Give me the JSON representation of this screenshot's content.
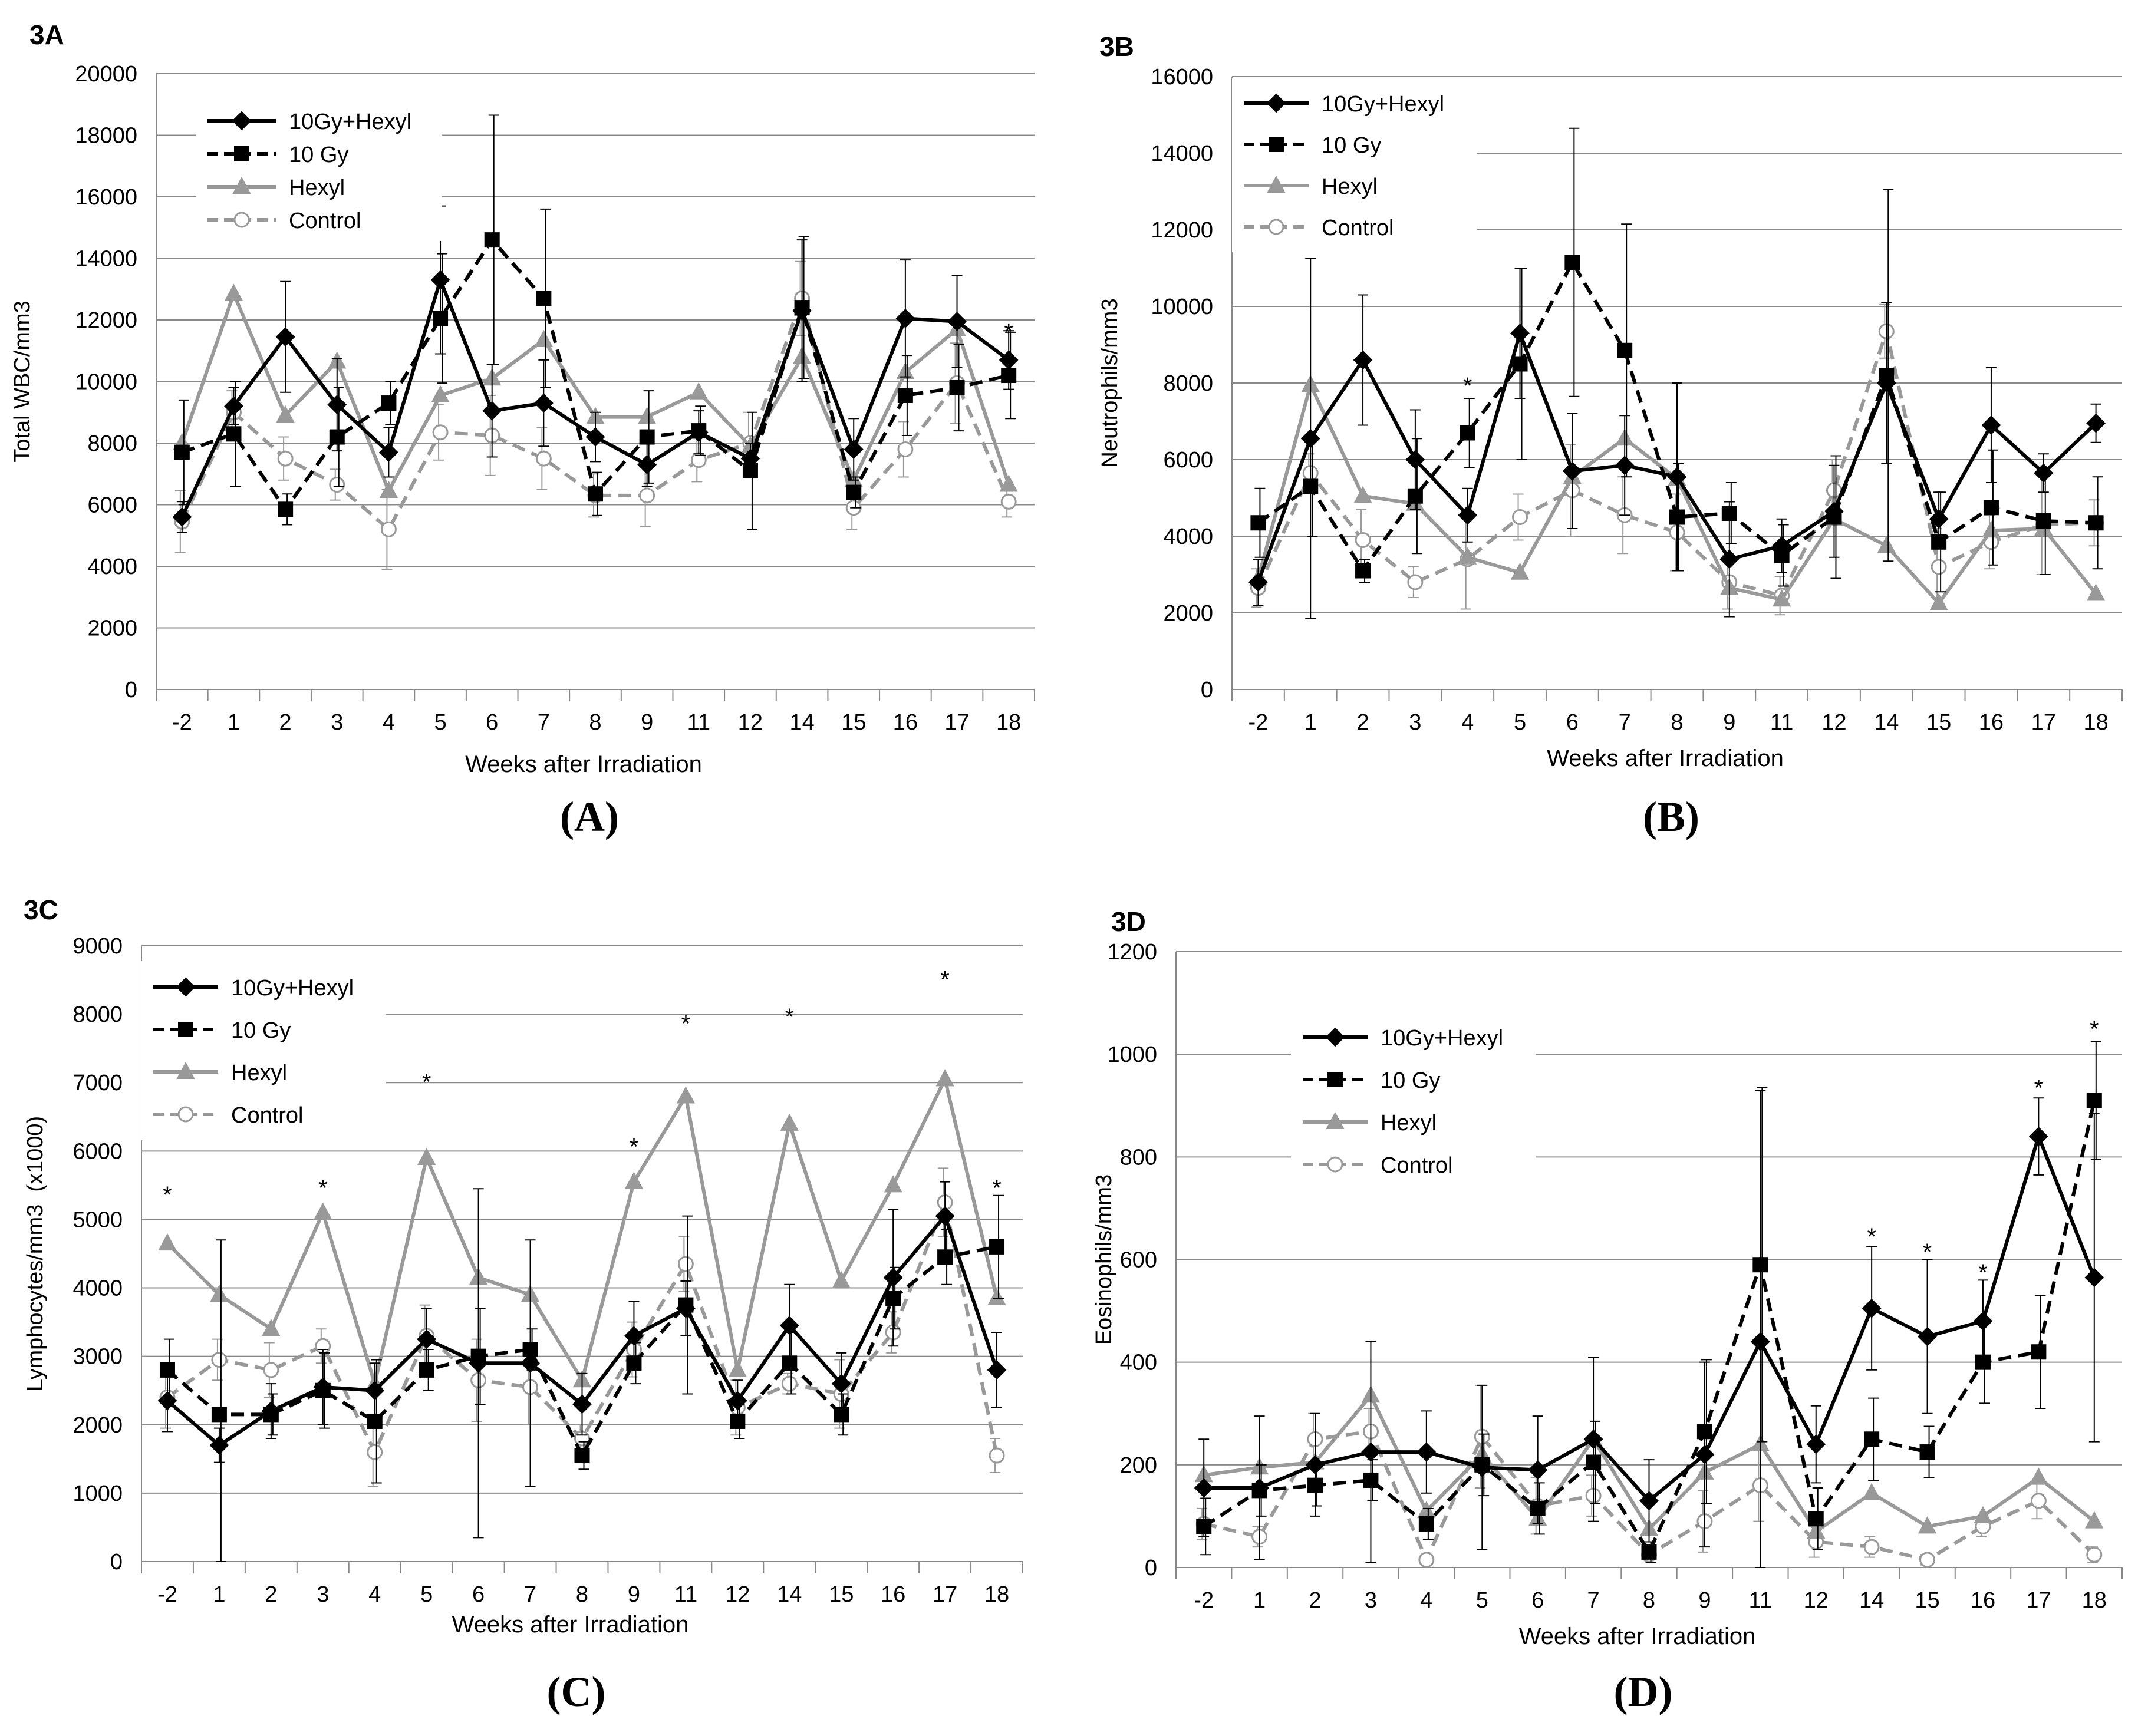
{
  "figure": {
    "captions": [
      "(A)",
      "(B)",
      "(C)",
      "(D)"
    ]
  },
  "series_styles": [
    {
      "key": "10Gy+Hexyl",
      "color": "#000000",
      "dash": "solid",
      "marker": "diamond",
      "marker_fill": "#000000"
    },
    {
      "key": "10 Gy",
      "color": "#000000",
      "dash": "dashed",
      "marker": "square",
      "marker_fill": "#000000"
    },
    {
      "key": "Hexyl",
      "color": "#999999",
      "dash": "solid",
      "marker": "triangle",
      "marker_fill": "#999999"
    },
    {
      "key": "Control",
      "color": "#999999",
      "dash": "dashed",
      "marker": "circle",
      "marker_fill": "#ffffff"
    }
  ],
  "chart_data": [
    {
      "panel_label": "3A",
      "caption": "(A)",
      "type": "line",
      "xlabel": "Weeks after Irradiation",
      "ylabel": "Total WBC/mm3",
      "ylim": [
        0,
        20000
      ],
      "yticks": [
        0,
        2000,
        4000,
        6000,
        8000,
        10000,
        12000,
        14000,
        16000,
        18000,
        20000
      ],
      "grid": true,
      "legend_position": "top-left",
      "categories": [
        "-2",
        "1",
        "2",
        "3",
        "4",
        "5",
        "6",
        "7",
        "8",
        "9",
        "11",
        "12",
        "14",
        "15",
        "16",
        "17",
        "18"
      ],
      "series": [
        {
          "name": "10Gy+Hexyl",
          "values": [
            5600,
            9200,
            11450,
            9250,
            7700,
            13300,
            9050,
            9300,
            8200,
            7300,
            8350,
            7500,
            12300,
            7800,
            12050,
            11950,
            10700
          ],
          "error": [
            500,
            600,
            1800,
            1500,
            800,
            2400,
            1500,
            1400,
            800,
            700,
            700,
            500,
            2300,
            1000,
            1900,
            1500,
            950
          ]
        },
        {
          "name": "10 Gy",
          "values": [
            7700,
            8300,
            5850,
            8200,
            9300,
            12050,
            14600,
            12700,
            6350,
            8200,
            8400,
            7100,
            12400,
            6400,
            9550,
            9800,
            10200
          ],
          "error": [
            1700,
            1700,
            500,
            1600,
            700,
            2100,
            4050,
            2900,
            700,
            1500,
            800,
            1900,
            2300,
            500,
            1300,
            1400,
            1400
          ]
        },
        {
          "name": "Hexyl",
          "values": [
            8000,
            12850,
            8900,
            10650,
            6450,
            9550,
            10100,
            11350,
            8850,
            8850,
            9650,
            7900,
            10800,
            6800,
            10300,
            11700,
            6650
          ]
        },
        {
          "name": "Control",
          "values": [
            5450,
            9000,
            7500,
            6650,
            5200,
            8350,
            8250,
            7500,
            6300,
            6300,
            7450,
            8000,
            12700,
            5900,
            7800,
            9950,
            6100
          ],
          "error": [
            1000,
            700,
            700,
            500,
            1300,
            900,
            1300,
            1000,
            700,
            1000,
            700,
            1000,
            1200,
            700,
            900,
            1300,
            500
          ]
        }
      ],
      "annotations": [
        {
          "text": "*",
          "category": "18",
          "y": 11700
        }
      ]
    },
    {
      "panel_label": "3B",
      "caption": "(B)",
      "type": "line",
      "xlabel": "Weeks after Irradiation",
      "ylabel": "Neutrophils/mm3",
      "ylim": [
        0,
        16000
      ],
      "yticks": [
        0,
        2000,
        4000,
        6000,
        8000,
        10000,
        12000,
        14000,
        16000
      ],
      "grid": true,
      "legend_position": "top-left",
      "categories": [
        "-2",
        "1",
        "2",
        "3",
        "4",
        "5",
        "6",
        "7",
        "8",
        "9",
        "11",
        "12",
        "14",
        "15",
        "16",
        "17",
        "18"
      ],
      "series": [
        {
          "name": "10Gy+Hexyl",
          "values": [
            2800,
            6550,
            8600,
            6000,
            4550,
            9300,
            5700,
            5850,
            5550,
            3400,
            3750,
            4650,
            8000,
            4450,
            6900,
            5650,
            6950
          ],
          "error": [
            600,
            4700,
            1700,
            1300,
            700,
            1700,
            1500,
            1300,
            2450,
            1500,
            700,
            1200,
            2100,
            700,
            1500,
            500,
            500
          ]
        },
        {
          "name": "10 Gy",
          "values": [
            4350,
            5300,
            3100,
            5050,
            6700,
            8500,
            11150,
            8850,
            4500,
            4600,
            3500,
            4500,
            8200,
            3850,
            4750,
            4400,
            4350
          ],
          "error": [
            900,
            1300,
            300,
            1500,
            900,
            2500,
            3500,
            3300,
            1400,
            800,
            800,
            1600,
            4850,
            1300,
            1500,
            1400,
            1200
          ]
        },
        {
          "name": "Hexyl",
          "values": [
            2900,
            7950,
            5050,
            4850,
            3450,
            3050,
            5550,
            6550,
            5500,
            2650,
            2350,
            4450,
            3750,
            2250,
            4150,
            4200,
            2500
          ]
        },
        {
          "name": "Control",
          "values": [
            2650,
            5650,
            3900,
            2800,
            3400,
            4500,
            5200,
            4550,
            4100,
            2800,
            2450,
            5200,
            9350,
            3200,
            3850,
            4300,
            4350
          ],
          "error": [
            500,
            500,
            800,
            400,
            1300,
            600,
            1200,
            1000,
            1000,
            700,
            500,
            800,
            700,
            1000,
            700,
            1300,
            600
          ]
        }
      ],
      "annotations": [
        {
          "text": "*",
          "category": "1",
          "y": 11700
        },
        {
          "text": "*",
          "category": "4",
          "y": 8000
        }
      ]
    },
    {
      "panel_label": "3C",
      "caption": "(C)",
      "type": "line",
      "xlabel": "Weeks after Irradiation",
      "ylabel": "Lymphocytes/mm3  (x1000)",
      "ylim": [
        0,
        9000
      ],
      "yticks": [
        0,
        1000,
        2000,
        3000,
        4000,
        5000,
        6000,
        7000,
        8000,
        9000
      ],
      "grid": true,
      "legend_position": "top-left",
      "categories": [
        "-2",
        "1",
        "2",
        "3",
        "4",
        "5",
        "6",
        "7",
        "8",
        "9",
        "11",
        "12",
        "14",
        "15",
        "16",
        "17",
        "18"
      ],
      "series": [
        {
          "name": "10Gy+Hexyl",
          "values": [
            2350,
            1700,
            2200,
            2550,
            2500,
            3250,
            2900,
            2900,
            2300,
            3300,
            3700,
            2350,
            3450,
            2600,
            4150,
            5050,
            2800
          ],
          "error": [
            450,
            250,
            400,
            550,
            400,
            450,
            2550,
            1800,
            450,
            500,
            400,
            300,
            600,
            450,
            1000,
            500,
            550
          ]
        },
        {
          "name": "10 Gy",
          "values": [
            2800,
            2150,
            2150,
            2500,
            2050,
            2800,
            3000,
            3100,
            1550,
            2900,
            3750,
            2050,
            2900,
            2150,
            3850,
            4450,
            4600
          ],
          "error": [
            450,
            2550,
            300,
            550,
            900,
            300,
            700,
            300,
            200,
            300,
            1300,
            250,
            450,
            300,
            450,
            400,
            750
          ]
        },
        {
          "name": "Hexyl",
          "values": [
            4650,
            3900,
            3400,
            5100,
            2600,
            5900,
            4150,
            3900,
            2650,
            5550,
            6800,
            2800,
            6400,
            4100,
            5500,
            7050,
            3850
          ]
        },
        {
          "name": "Control",
          "values": [
            2400,
            2950,
            2800,
            3150,
            1600,
            3300,
            2650,
            2550,
            1800,
            3100,
            4350,
            2250,
            2600,
            2450,
            3350,
            5250,
            1550
          ],
          "error": [
            450,
            300,
            400,
            250,
            500,
            450,
            600,
            550,
            200,
            400,
            400,
            400,
            150,
            500,
            300,
            500,
            250
          ]
        }
      ],
      "annotations": [
        {
          "text": "*",
          "category": "-2",
          "y": 5400
        },
        {
          "text": "*",
          "category": "3",
          "y": 5500
        },
        {
          "text": "*",
          "category": "5",
          "y": 7050
        },
        {
          "text": "*",
          "category": "9",
          "y": 6100
        },
        {
          "text": "*",
          "category": "11",
          "y": 7900
        },
        {
          "text": "*",
          "category": "14",
          "y": 8000
        },
        {
          "text": "*",
          "category": "17",
          "y": 8550
        },
        {
          "text": "*",
          "category": "18",
          "y": 5500
        }
      ]
    },
    {
      "panel_label": "3D",
      "caption": "(D)",
      "type": "line",
      "xlabel": "Weeks after Irradiation",
      "ylabel": "Eosinophils/mm3",
      "ylim": [
        0,
        1200
      ],
      "yticks": [
        0,
        200,
        400,
        600,
        800,
        1000,
        1200
      ],
      "grid": true,
      "legend_position": "top-left",
      "categories": [
        "-2",
        "1",
        "2",
        "3",
        "4",
        "5",
        "6",
        "7",
        "8",
        "9",
        "11",
        "12",
        "14",
        "15",
        "16",
        "17",
        "18"
      ],
      "series": [
        {
          "name": "10Gy+Hexyl",
          "values": [
            155,
            155,
            200,
            225,
            225,
            195,
            190,
            250,
            130,
            220,
            440,
            240,
            505,
            450,
            480,
            840,
            565
          ],
          "error": [
            95,
            140,
            100,
            215,
            80,
            160,
            105,
            160,
            80,
            180,
            490,
            75,
            120,
            150,
            80,
            75,
            320
          ]
        },
        {
          "name": "10 Gy",
          "values": [
            80,
            150,
            160,
            170,
            85,
            200,
            115,
            205,
            30,
            265,
            590,
            95,
            250,
            225,
            400,
            420,
            910
          ],
          "error": [
            55,
            50,
            40,
            40,
            30,
            60,
            50,
            80,
            20,
            140,
            345,
            60,
            80,
            50,
            80,
            110,
            115
          ]
        },
        {
          "name": "Hexyl",
          "values": [
            180,
            195,
            205,
            335,
            110,
            220,
            95,
            250,
            75,
            185,
            240,
            70,
            145,
            80,
            100,
            175,
            90
          ]
        },
        {
          "name": "Control",
          "values": [
            85,
            60,
            250,
            265,
            15,
            255,
            120,
            140,
            25,
            90,
            160,
            50,
            40,
            15,
            80,
            130,
            25
          ],
          "error": [
            30,
            20,
            50,
            45,
            5,
            100,
            55,
            40,
            10,
            60,
            70,
            30,
            20,
            10,
            20,
            35,
            15
          ]
        }
      ],
      "annotations": [
        {
          "text": "*",
          "category": "14",
          "y": 650
        },
        {
          "text": "*",
          "category": "15",
          "y": 620
        },
        {
          "text": "*",
          "category": "16",
          "y": 580
        },
        {
          "text": "*",
          "category": "17",
          "y": 940
        },
        {
          "text": "*",
          "category": "18",
          "y": 1055
        }
      ]
    }
  ]
}
